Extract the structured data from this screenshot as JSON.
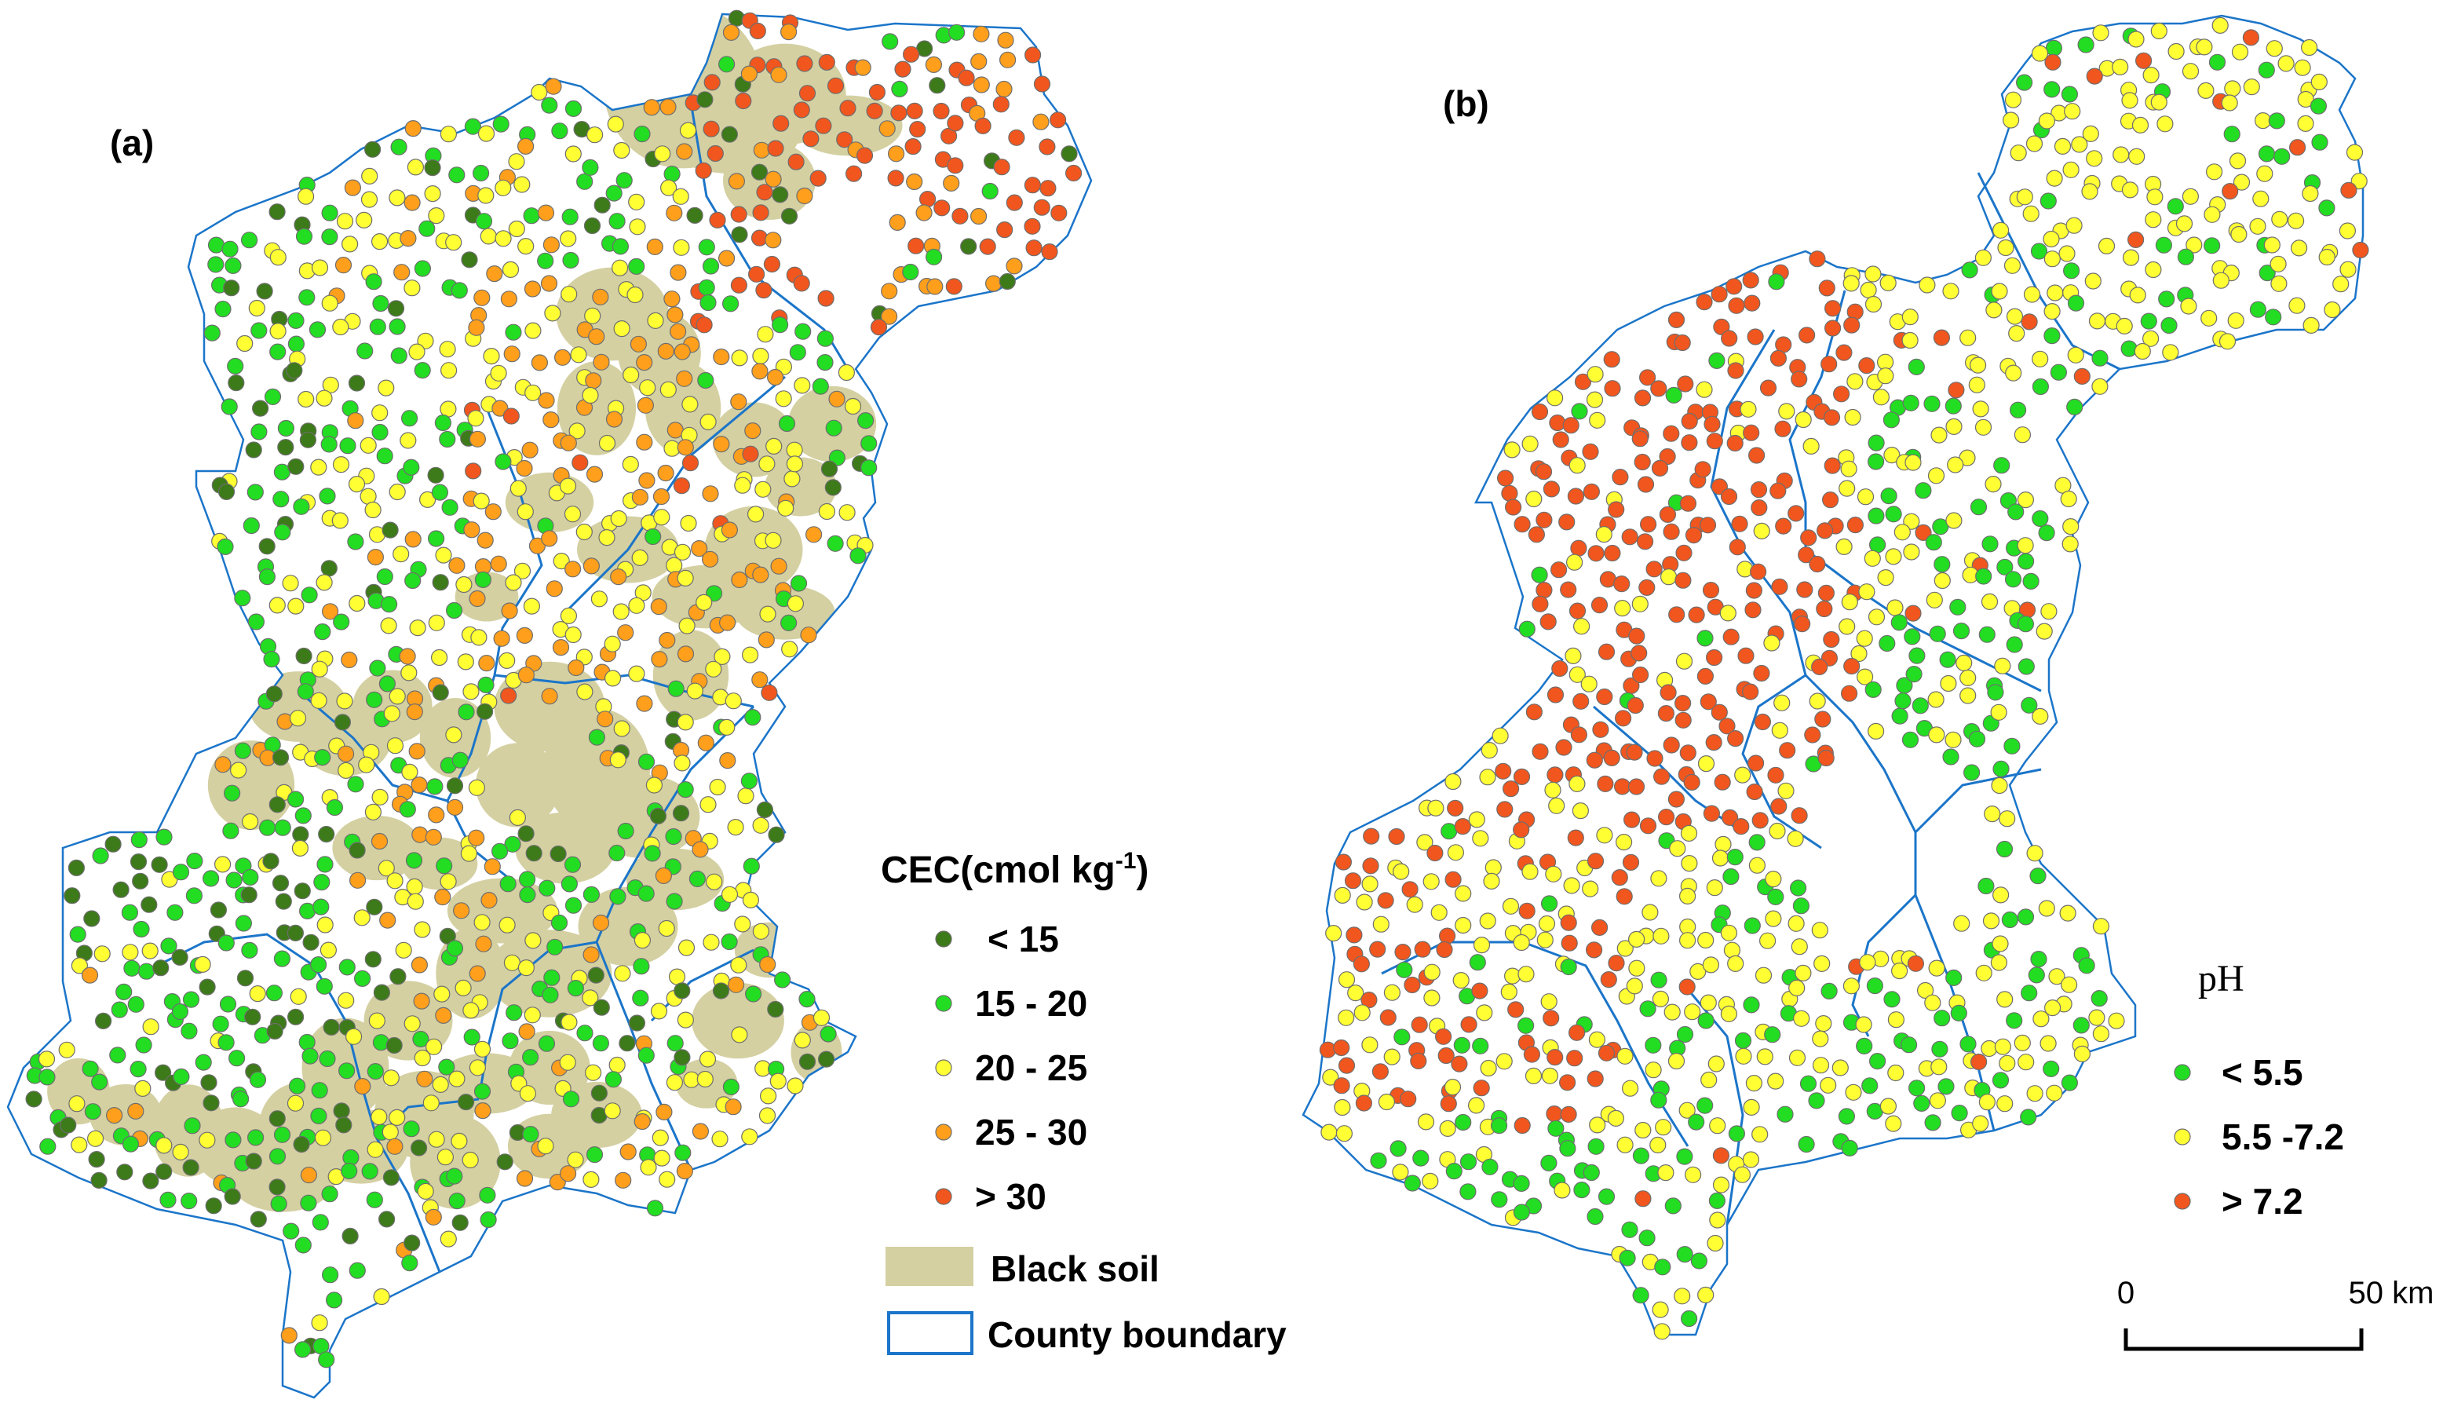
{
  "panels": [
    {
      "id": "a",
      "label": "(a)",
      "legend": {
        "title": "CEC(cmol kg",
        "title_superscript": "-1",
        "title_close": ")",
        "classes": [
          {
            "label": "< 15",
            "color": "#3d7a19"
          },
          {
            "label": "15 - 20",
            "color": "#22dd22"
          },
          {
            "label": "20 - 25",
            "color": "#ffff33"
          },
          {
            "label": "25 - 30",
            "color": "#ff9f1c"
          },
          {
            "label": "> 30",
            "color": "#f1561e"
          }
        ],
        "extra": [
          {
            "label": "Black soil",
            "color": "#d4d0a2"
          },
          {
            "label": "County boundary",
            "color": "#1b75c9"
          }
        ]
      }
    },
    {
      "id": "b",
      "label": "(b)",
      "legend": {
        "title": "pH",
        "classes": [
          {
            "label": "< 5.5",
            "color": "#22dd22"
          },
          {
            "label": "5.5 -7.2",
            "color": "#ffff33"
          },
          {
            "label": "> 7.2",
            "color": "#f1561e"
          }
        ]
      }
    }
  ],
  "scale_bar": {
    "start_label": "0",
    "end_label": "50 km"
  },
  "colors": {
    "boundary": "#1b75c9",
    "point_outline": "#6e6e6e",
    "black_soil": "#d4d0a2"
  }
}
